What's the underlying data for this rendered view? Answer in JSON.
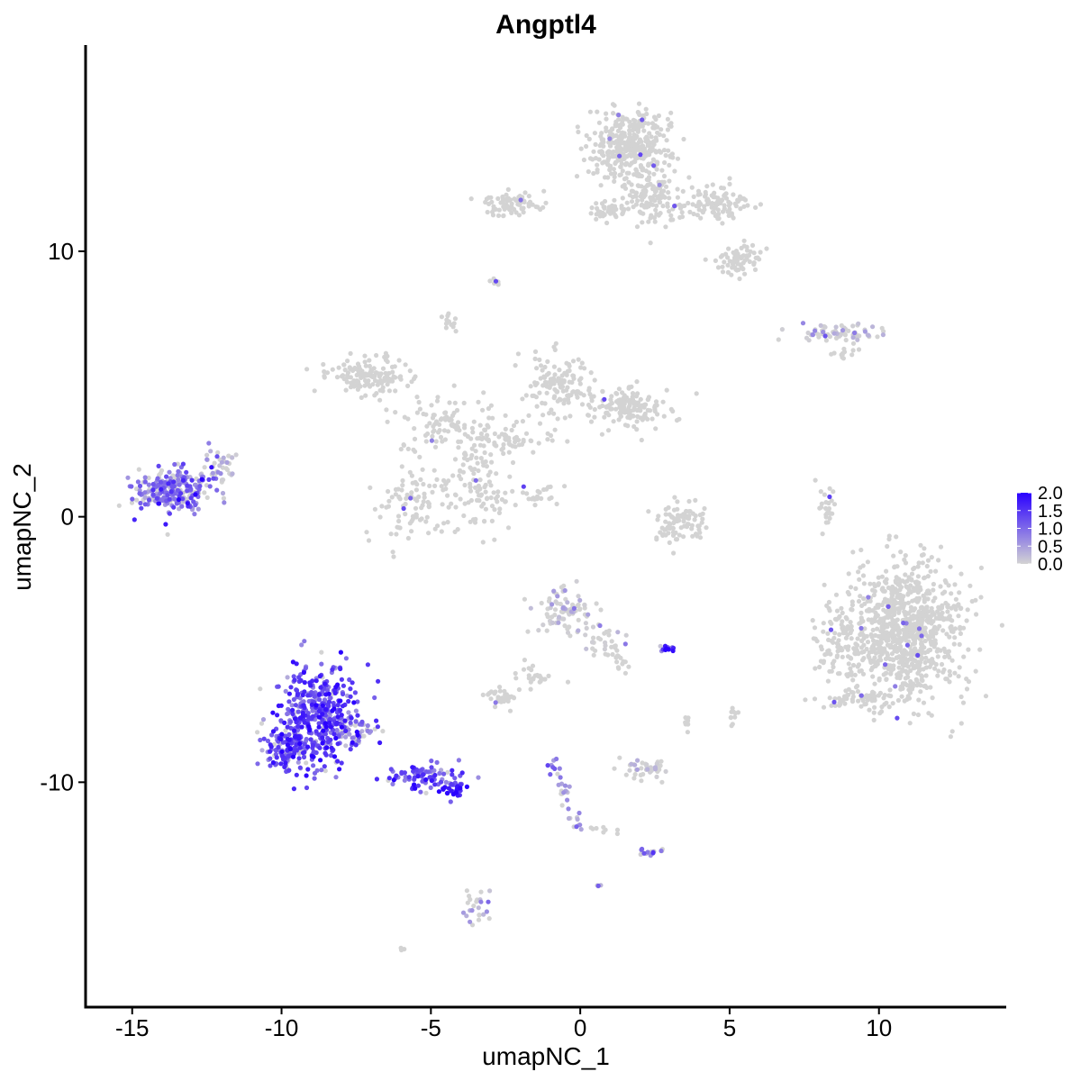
{
  "chart_data": {
    "type": "scatter",
    "title": "Angptl4",
    "xlabel": "umapNC_1",
    "ylabel": "umapNC_2",
    "xlim": [
      -16.5,
      14.2
    ],
    "ylim": [
      -18.2,
      17.7
    ],
    "xticks": [
      -15,
      -10,
      -5,
      0,
      5,
      10
    ],
    "xtick_labels": [
      "-15",
      "-10",
      "-5",
      "0",
      "5",
      "10"
    ],
    "yticks": [
      -10,
      0,
      10
    ],
    "ytick_labels": [
      "-10",
      "0",
      "10"
    ],
    "grid": false,
    "legend": {
      "position": "right",
      "type": "colorbar",
      "low_color": "#d3d3d3",
      "high_color": "#2a00ff",
      "range": [
        0.0,
        2.0
      ],
      "ticks": [
        2.0,
        1.5,
        1.0,
        0.5,
        0.0
      ],
      "tick_labels": [
        "2.0",
        "1.5",
        "1.0",
        "0.5",
        "0.0"
      ]
    },
    "clusters": [
      {
        "center": [
          -13.6,
          1.0
        ],
        "spread": [
          0.8,
          0.55
        ],
        "n": 260,
        "expr": 0.9
      },
      {
        "center": [
          -12.0,
          1.8
        ],
        "spread": [
          0.4,
          0.6
        ],
        "n": 40,
        "expr": 0.3
      },
      {
        "center": [
          -8.8,
          -7.5
        ],
        "spread": [
          0.9,
          1.3
        ],
        "n": 420,
        "expr": 1.3
      },
      {
        "center": [
          -9.8,
          -8.8
        ],
        "spread": [
          0.5,
          0.6
        ],
        "n": 120,
        "expr": 1.2
      },
      {
        "center": [
          -5.2,
          -9.8
        ],
        "spread": [
          0.9,
          0.35
        ],
        "n": 90,
        "expr": 1.3
      },
      {
        "center": [
          -4.2,
          -10.3
        ],
        "spread": [
          0.3,
          0.2
        ],
        "n": 30,
        "expr": 1.5
      },
      {
        "center": [
          -7.5,
          -8.2
        ],
        "spread": [
          0.5,
          0.4
        ],
        "n": 40,
        "expr": 0.6
      },
      {
        "center": [
          1.7,
          14.0
        ],
        "spread": [
          0.9,
          0.9
        ],
        "n": 380,
        "expr": 0.02
      },
      {
        "center": [
          2.5,
          12.0
        ],
        "spread": [
          0.6,
          0.7
        ],
        "n": 120,
        "expr": 0.02
      },
      {
        "center": [
          4.5,
          11.8
        ],
        "spread": [
          0.9,
          0.4
        ],
        "n": 110,
        "expr": 0.02
      },
      {
        "center": [
          5.3,
          9.6
        ],
        "spread": [
          0.6,
          0.35
        ],
        "n": 70,
        "expr": 0.02
      },
      {
        "center": [
          -2.2,
          11.8
        ],
        "spread": [
          0.7,
          0.3
        ],
        "n": 80,
        "expr": 0.02
      },
      {
        "center": [
          0.9,
          11.5
        ],
        "spread": [
          0.6,
          0.25
        ],
        "n": 40,
        "expr": 0.02
      },
      {
        "center": [
          -2.8,
          8.8
        ],
        "spread": [
          0.15,
          0.12
        ],
        "n": 10,
        "expr": 0.02
      },
      {
        "center": [
          -4.4,
          7.4
        ],
        "spread": [
          0.2,
          0.25
        ],
        "n": 12,
        "expr": 0.02
      },
      {
        "center": [
          -7.1,
          5.3
        ],
        "spread": [
          0.9,
          0.5
        ],
        "n": 140,
        "expr": 0.02
      },
      {
        "center": [
          -4.5,
          3.6
        ],
        "spread": [
          1.0,
          0.6
        ],
        "n": 90,
        "expr": 0.02
      },
      {
        "center": [
          -3.5,
          1.2
        ],
        "spread": [
          0.9,
          1.1
        ],
        "n": 110,
        "expr": 0.02
      },
      {
        "center": [
          -5.6,
          0.5
        ],
        "spread": [
          0.8,
          0.8
        ],
        "n": 90,
        "expr": 0.02
      },
      {
        "center": [
          -0.7,
          5.0
        ],
        "spread": [
          0.8,
          0.7
        ],
        "n": 130,
        "expr": 0.02
      },
      {
        "center": [
          1.6,
          4.1
        ],
        "spread": [
          0.9,
          0.5
        ],
        "n": 150,
        "expr": 0.02
      },
      {
        "center": [
          -2.4,
          3.0
        ],
        "spread": [
          0.9,
          0.4
        ],
        "n": 60,
        "expr": 0.02
      },
      {
        "center": [
          -1.5,
          0.8
        ],
        "spread": [
          0.7,
          0.3
        ],
        "n": 25,
        "expr": 0.02
      },
      {
        "center": [
          3.3,
          -0.2
        ],
        "spread": [
          0.6,
          0.5
        ],
        "n": 90,
        "expr": 0.02
      },
      {
        "center": [
          8.6,
          6.9
        ],
        "spread": [
          1.0,
          0.2
        ],
        "n": 70,
        "expr": 0.2
      },
      {
        "center": [
          8.9,
          6.1
        ],
        "spread": [
          0.3,
          0.15
        ],
        "n": 12,
        "expr": 0.02
      },
      {
        "center": [
          8.3,
          0.5
        ],
        "spread": [
          0.2,
          0.6
        ],
        "n": 25,
        "expr": 0.02
      },
      {
        "center": [
          10.9,
          -4.3
        ],
        "spread": [
          1.3,
          1.7
        ],
        "n": 900,
        "expr": 0.01
      },
      {
        "center": [
          8.5,
          -5.0
        ],
        "spread": [
          0.5,
          1.0
        ],
        "n": 80,
        "expr": 0.01
      },
      {
        "center": [
          9.2,
          -6.9
        ],
        "spread": [
          0.8,
          0.25
        ],
        "n": 50,
        "expr": 0.01
      },
      {
        "center": [
          -0.5,
          -3.5
        ],
        "spread": [
          0.6,
          0.6
        ],
        "n": 80,
        "expr": 0.1
      },
      {
        "center": [
          0.7,
          -4.6
        ],
        "spread": [
          0.5,
          0.5
        ],
        "n": 30,
        "expr": 0.05
      },
      {
        "center": [
          1.3,
          -5.6
        ],
        "spread": [
          0.2,
          0.5
        ],
        "n": 15,
        "expr": 0.02
      },
      {
        "center": [
          -1.5,
          -6.1
        ],
        "spread": [
          0.6,
          0.4
        ],
        "n": 25,
        "expr": 0.02
      },
      {
        "center": [
          -2.6,
          -6.8
        ],
        "spread": [
          0.35,
          0.2
        ],
        "n": 35,
        "expr": 0.02
      },
      {
        "center": [
          2.9,
          -5.0
        ],
        "spread": [
          0.2,
          0.1
        ],
        "n": 12,
        "expr": 1.4
      },
      {
        "center": [
          -0.9,
          -9.4
        ],
        "spread": [
          0.15,
          0.3
        ],
        "n": 10,
        "expr": 1.0
      },
      {
        "center": [
          -0.5,
          -10.5
        ],
        "spread": [
          0.12,
          0.45
        ],
        "n": 14,
        "expr": 0.8
      },
      {
        "center": [
          -0.1,
          -11.6
        ],
        "spread": [
          0.2,
          0.25
        ],
        "n": 10,
        "expr": 0.5
      },
      {
        "center": [
          2.2,
          -9.5
        ],
        "spread": [
          0.6,
          0.3
        ],
        "n": 40,
        "expr": 0.05
      },
      {
        "center": [
          2.3,
          -12.6
        ],
        "spread": [
          0.35,
          0.12
        ],
        "n": 18,
        "expr": 0.6
      },
      {
        "center": [
          0.9,
          -11.8
        ],
        "spread": [
          0.4,
          0.1
        ],
        "n": 8,
        "expr": 0.02
      },
      {
        "center": [
          5.1,
          -7.5
        ],
        "spread": [
          0.2,
          0.3
        ],
        "n": 10,
        "expr": 0.02
      },
      {
        "center": [
          3.6,
          -7.9
        ],
        "spread": [
          0.15,
          0.3
        ],
        "n": 8,
        "expr": 0.02
      },
      {
        "center": [
          -3.5,
          -14.8
        ],
        "spread": [
          0.3,
          0.55
        ],
        "n": 25,
        "expr": 0.3
      },
      {
        "center": [
          0.7,
          -13.9
        ],
        "spread": [
          0.1,
          0.05
        ],
        "n": 4,
        "expr": 0.6
      },
      {
        "center": [
          -6.0,
          -16.3
        ],
        "spread": [
          0.08,
          0.05
        ],
        "n": 3,
        "expr": 0.02
      },
      {
        "center": [
          -5.7,
          2.6
        ],
        "spread": [
          0.3,
          0.1
        ],
        "n": 6,
        "expr": 0.02
      }
    ]
  }
}
